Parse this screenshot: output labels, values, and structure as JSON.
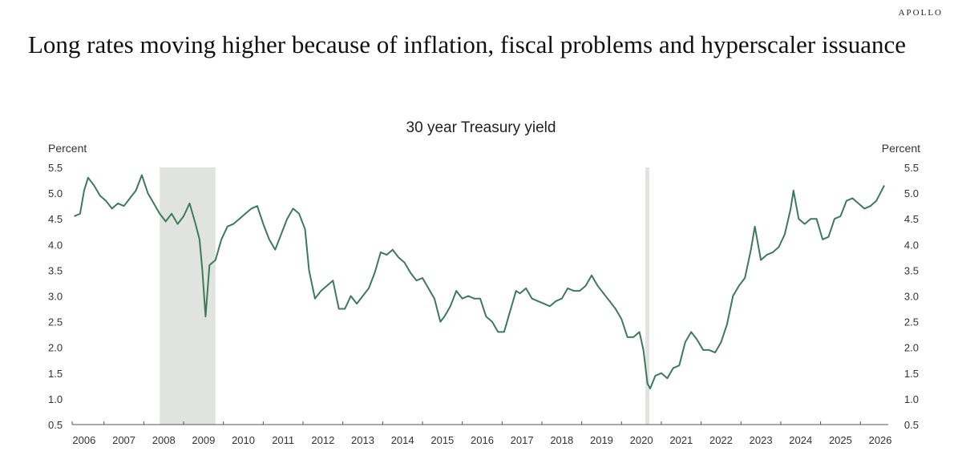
{
  "brand": "APOLLO",
  "headline": "Long rates moving higher because of inflation, fiscal problems and hyperscaler issuance",
  "chart_data": {
    "type": "line",
    "title": "30 year Treasury yield",
    "ylabel_left": "Percent",
    "ylabel_right": "Percent",
    "ylim": [
      0.5,
      5.5
    ],
    "yticks": [
      "5.5",
      "5.0",
      "4.5",
      "4.0",
      "3.5",
      "3.0",
      "2.5",
      "2.0",
      "1.5",
      "1.0",
      "0.5"
    ],
    "xticks": [
      "2006",
      "2007",
      "2008",
      "2009",
      "2010",
      "2011",
      "2012",
      "2013",
      "2014",
      "2015",
      "2016",
      "2017",
      "2018",
      "2019",
      "2020",
      "2021",
      "2022",
      "2023",
      "2024",
      "2025",
      "2026"
    ],
    "xlim": [
      2005.7,
      2026.2
    ],
    "line_color": "#3d7a5c",
    "shade_color": "#e1e3e1",
    "recessions": [
      {
        "start": 2007.9,
        "end": 2009.3
      },
      {
        "start": 2020.1,
        "end": 2020.2
      }
    ],
    "grid": false,
    "series": [
      {
        "x": [
          2005.75,
          2005.9,
          2006.0,
          2006.1,
          2006.25,
          2006.4,
          2006.55,
          2006.7,
          2006.85,
          2007.0,
          2007.15,
          2007.3,
          2007.45,
          2007.6,
          2007.75,
          2007.9,
          2008.05,
          2008.2,
          2008.35,
          2008.5,
          2008.65,
          2008.8,
          2008.9,
          2008.97,
          2009.05,
          2009.15,
          2009.3,
          2009.45,
          2009.6,
          2009.75,
          2009.9,
          2010.05,
          2010.2,
          2010.35,
          2010.5,
          2010.65,
          2010.8,
          2010.95,
          2011.1,
          2011.25,
          2011.4,
          2011.55,
          2011.65,
          2011.8,
          2011.95,
          2012.1,
          2012.25,
          2012.4,
          2012.55,
          2012.7,
          2012.85,
          2013.0,
          2013.15,
          2013.3,
          2013.45,
          2013.6,
          2013.75,
          2013.9,
          2014.05,
          2014.2,
          2014.35,
          2014.5,
          2014.65,
          2014.8,
          2014.95,
          2015.05,
          2015.2,
          2015.35,
          2015.5,
          2015.65,
          2015.8,
          2015.95,
          2016.1,
          2016.25,
          2016.4,
          2016.55,
          2016.7,
          2016.85,
          2016.95,
          2017.1,
          2017.25,
          2017.4,
          2017.55,
          2017.7,
          2017.85,
          2018.0,
          2018.15,
          2018.3,
          2018.45,
          2018.6,
          2018.75,
          2018.9,
          2019.05,
          2019.2,
          2019.35,
          2019.5,
          2019.65,
          2019.8,
          2019.95,
          2020.05,
          2020.15,
          2020.22,
          2020.35,
          2020.5,
          2020.65,
          2020.8,
          2020.95,
          2021.1,
          2021.25,
          2021.4,
          2021.55,
          2021.7,
          2021.85,
          2022.0,
          2022.15,
          2022.3,
          2022.45,
          2022.6,
          2022.75,
          2022.85,
          2023.0,
          2023.15,
          2023.3,
          2023.45,
          2023.6,
          2023.75,
          2023.82,
          2023.95,
          2024.1,
          2024.25,
          2024.4,
          2024.55,
          2024.7,
          2024.85,
          2025.0,
          2025.15,
          2025.3,
          2025.45,
          2025.6,
          2025.75,
          2025.9,
          2026.0,
          2026.1
        ],
        "values": [
          4.55,
          4.6,
          5.05,
          5.3,
          5.15,
          4.95,
          4.85,
          4.7,
          4.8,
          4.75,
          4.9,
          5.05,
          5.35,
          5.0,
          4.8,
          4.6,
          4.45,
          4.6,
          4.4,
          4.55,
          4.8,
          4.4,
          4.1,
          3.5,
          2.6,
          3.6,
          3.7,
          4.1,
          4.35,
          4.4,
          4.5,
          4.6,
          4.7,
          4.75,
          4.4,
          4.1,
          3.9,
          4.2,
          4.5,
          4.7,
          4.6,
          4.3,
          3.5,
          2.95,
          3.1,
          3.2,
          3.3,
          2.75,
          2.75,
          3.0,
          2.85,
          3.0,
          3.15,
          3.45,
          3.85,
          3.8,
          3.9,
          3.75,
          3.65,
          3.45,
          3.3,
          3.35,
          3.15,
          2.95,
          2.5,
          2.6,
          2.8,
          3.1,
          2.95,
          3.0,
          2.95,
          2.95,
          2.6,
          2.5,
          2.3,
          2.3,
          2.7,
          3.1,
          3.05,
          3.15,
          2.95,
          2.9,
          2.85,
          2.8,
          2.9,
          2.95,
          3.15,
          3.1,
          3.1,
          3.2,
          3.4,
          3.2,
          3.05,
          2.9,
          2.75,
          2.55,
          2.2,
          2.2,
          2.3,
          1.95,
          1.3,
          1.2,
          1.45,
          1.5,
          1.4,
          1.6,
          1.65,
          2.1,
          2.3,
          2.15,
          1.95,
          1.95,
          1.9,
          2.1,
          2.45,
          3.0,
          3.2,
          3.35,
          3.9,
          4.35,
          3.7,
          3.8,
          3.85,
          3.95,
          4.2,
          4.7,
          5.05,
          4.5,
          4.4,
          4.5,
          4.5,
          4.1,
          4.15,
          4.5,
          4.55,
          4.85,
          4.9,
          4.8,
          4.7,
          4.75,
          4.85,
          5.0,
          5.15
        ]
      }
    ]
  }
}
